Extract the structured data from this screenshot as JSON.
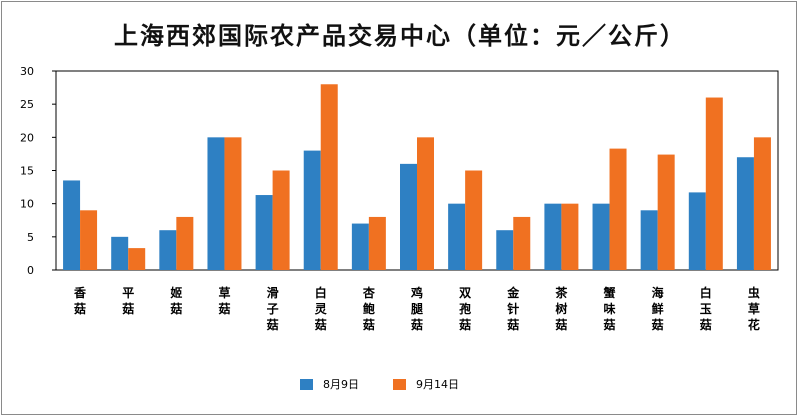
{
  "chart_data": {
    "type": "bar",
    "title": "上海西郊国际农产品交易中心（单位：元／公斤）",
    "categories": [
      "香菇",
      "平菇",
      "姬菇",
      "草菇",
      "滑子菇",
      "白灵菇",
      "杏鲍菇",
      "鸡腿菇",
      "双孢菇",
      "金针菇",
      "茶树菇",
      "蟹味菇",
      "海鲜菇",
      "白玉菇",
      "虫草花"
    ],
    "series": [
      {
        "name": "8月9日",
        "color": "#2e80c3",
        "values": [
          13.5,
          5,
          6,
          20,
          11.3,
          18,
          7,
          16,
          10,
          6,
          10,
          10,
          9,
          11.7,
          17
        ]
      },
      {
        "name": "9月14日",
        "color": "#f07121",
        "values": [
          9,
          3.3,
          8,
          20,
          15,
          28,
          8,
          20,
          15,
          8,
          10,
          18.3,
          17.4,
          26,
          20
        ]
      }
    ],
    "ylim": [
      0,
      30
    ],
    "yticks": [
      0,
      5,
      10,
      15,
      20,
      25,
      30
    ],
    "grid": false,
    "legend": "bottom"
  }
}
